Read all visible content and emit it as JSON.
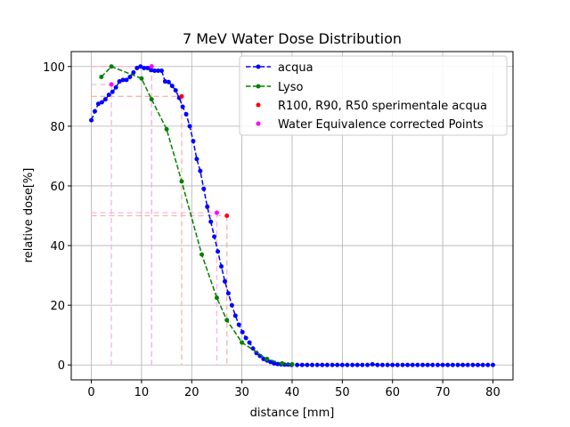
{
  "chart_data": {
    "type": "line",
    "title": "7 MeV Water Dose Distribution",
    "xlabel": "distance [mm]",
    "ylabel": "relative dose[%]",
    "xlim": [
      -4,
      84
    ],
    "ylim": [
      -5,
      105
    ],
    "xticks": [
      0,
      10,
      20,
      30,
      40,
      50,
      60,
      70,
      80
    ],
    "yticks": [
      0,
      20,
      40,
      60,
      80,
      100
    ],
    "grid": true,
    "legend_position": "top-right",
    "colors": {
      "acqua": "#0000ff",
      "lyso": "#008000",
      "r_points": "#ff0000",
      "wec_points": "#ff00ff",
      "ref_lines_red": "#f4b6a8",
      "ref_lines_magenta": "#f7b3e6",
      "grid": "#b0b0b0"
    },
    "series": [
      {
        "name": "acqua",
        "style": "dashed-dot",
        "x": [
          0,
          0.7,
          1.4,
          2.1,
          2.8,
          3.5,
          4.2,
          4.9,
          5.6,
          6.3,
          7,
          7.7,
          8.4,
          9.1,
          9.8,
          10.5,
          11.2,
          11.9,
          12.6,
          13.3,
          14,
          14.7,
          15.4,
          16.1,
          16.8,
          17.5,
          18.2,
          18.9,
          19.6,
          20.3,
          21,
          21.7,
          22.4,
          23.1,
          23.8,
          24.5,
          25.2,
          25.9,
          26.6,
          27.3,
          28,
          28.7,
          29.4,
          30.1,
          30.8,
          31.5,
          32.2,
          32.9,
          33.6,
          34.3,
          35,
          35.7,
          36.4,
          37.1,
          37.8,
          38.5,
          39.2,
          39.9,
          41,
          42,
          43,
          44,
          45,
          46,
          47,
          48,
          49,
          50,
          51,
          52,
          53,
          54,
          55,
          56,
          57,
          58,
          59,
          60,
          61,
          62,
          63,
          64,
          65,
          66,
          67,
          68,
          69,
          70,
          71,
          72,
          73,
          74,
          75,
          76,
          77,
          78,
          79,
          80
        ],
        "y": [
          82,
          85,
          87.5,
          88,
          89,
          90.5,
          91.5,
          93,
          95,
          95.5,
          95.5,
          96.5,
          98,
          99.5,
          100,
          99.5,
          99.5,
          98.8,
          98.6,
          98.6,
          98.6,
          95,
          94.8,
          93.5,
          92,
          89.5,
          86.5,
          84,
          80,
          75,
          69,
          65,
          59,
          53,
          48,
          43,
          38,
          33,
          28,
          24,
          20,
          16.5,
          13.5,
          11,
          9,
          7.5,
          5.5,
          4,
          3,
          2,
          1.5,
          1,
          0.5,
          0.3,
          0.2,
          0.1,
          0.1,
          0,
          0,
          0,
          0,
          0,
          0,
          0,
          0,
          0,
          0,
          0,
          0,
          0,
          0,
          0,
          0,
          0.2,
          0,
          0,
          0,
          0,
          0,
          0,
          0,
          0,
          0,
          0,
          0,
          0,
          0,
          0,
          0,
          0,
          0,
          0,
          0,
          0,
          0,
          0,
          0,
          0
        ]
      },
      {
        "name": "Lyso",
        "style": "dashed-dot",
        "x": [
          2,
          4,
          10,
          12,
          15,
          18,
          22,
          25,
          27,
          30,
          35,
          38,
          40
        ],
        "y": [
          96.5,
          100,
          96,
          89,
          79,
          61.5,
          37,
          22.5,
          15,
          7.5,
          2,
          0.5,
          0.2
        ]
      },
      {
        "name": "R100, R90, R50 sperimentale acqua",
        "style": "points",
        "x": [
          12,
          18,
          27
        ],
        "y": [
          100,
          90,
          50
        ]
      },
      {
        "name": "Water Equivalence corrected Points",
        "style": "points",
        "x": [
          4,
          12,
          25
        ],
        "y": [
          94,
          100,
          51
        ]
      }
    ],
    "reference_lines": {
      "red": [
        {
          "x": 12,
          "y": 100
        },
        {
          "x": 18,
          "y": 90
        },
        {
          "x": 27,
          "y": 50
        }
      ],
      "magenta": [
        {
          "x": 4,
          "y": 94
        },
        {
          "x": 12,
          "y": 100
        },
        {
          "x": 25,
          "y": 51
        }
      ]
    }
  }
}
